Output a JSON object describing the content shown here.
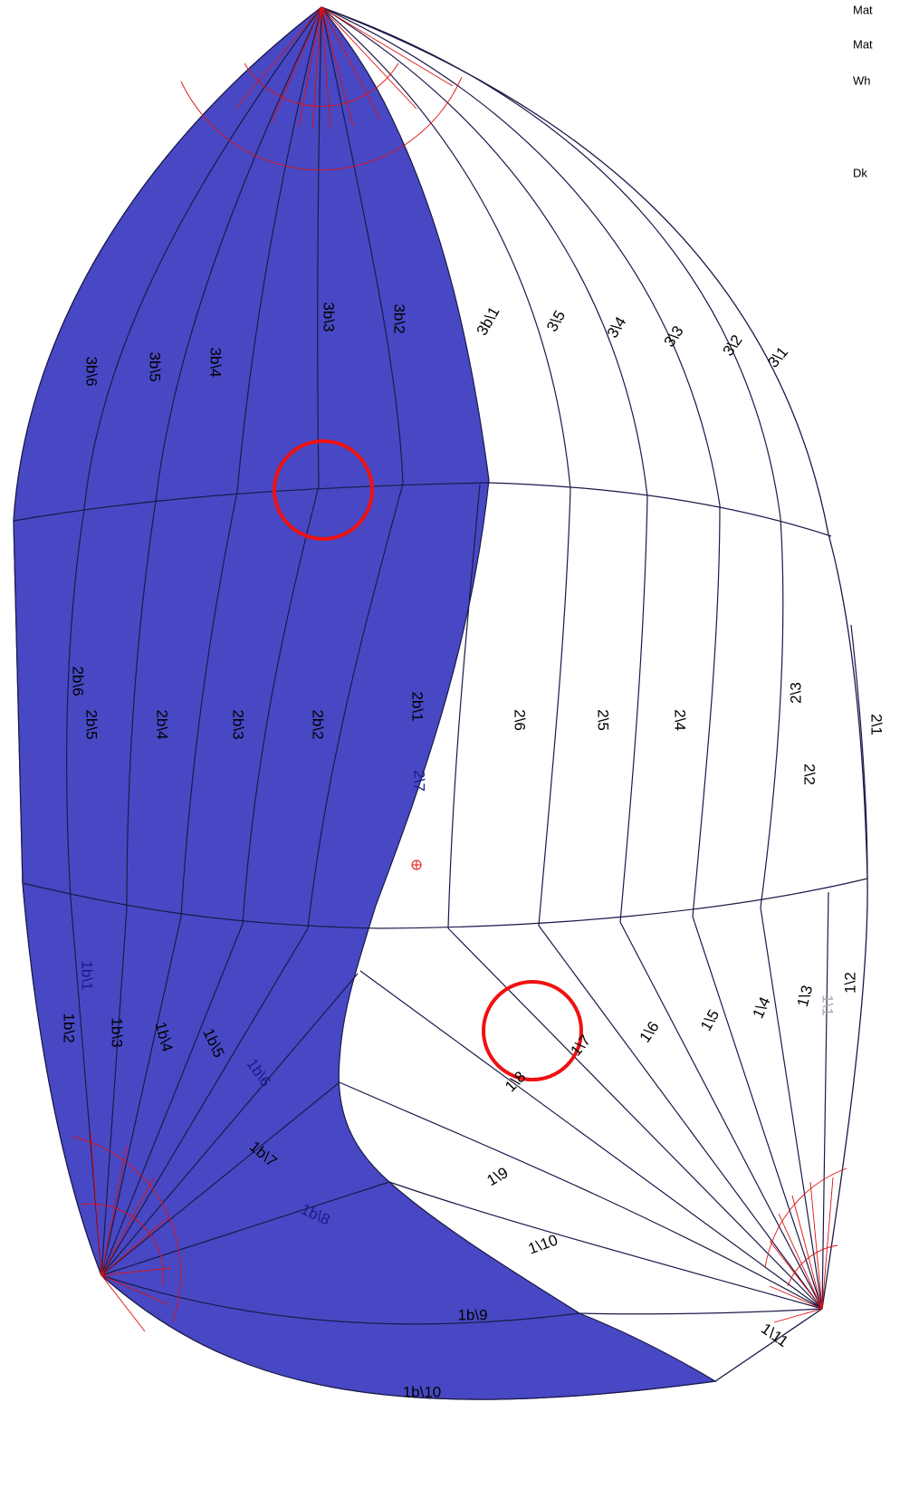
{
  "legend": [
    "Mat",
    "Mat",
    "Wh",
    "Dk"
  ],
  "panels": [
    "3b\\6",
    "3b\\5",
    "3b\\4",
    "3b\\3",
    "3b\\2",
    "3b\\1",
    "3\\5",
    "3\\4",
    "3\\3",
    "3\\2",
    "3\\1",
    "2b\\6",
    "2b\\5",
    "2b\\4",
    "2b\\3",
    "2b\\2",
    "2b\\1",
    "2\\7",
    "2\\6",
    "2\\5",
    "2\\4",
    "2\\3",
    "2\\2",
    "2\\1",
    "1b\\1",
    "1b\\2",
    "1b\\3",
    "1b\\4",
    "1b\\5",
    "1b\\6",
    "1b\\7",
    "1b\\8",
    "1b\\9",
    "1b\\10",
    "1\\8",
    "1\\7",
    "1\\6",
    "1\\5",
    "1\\4",
    "1\\3",
    "1\\1",
    "1\\2",
    "1\\9",
    "1\\10",
    "1\\11"
  ]
}
